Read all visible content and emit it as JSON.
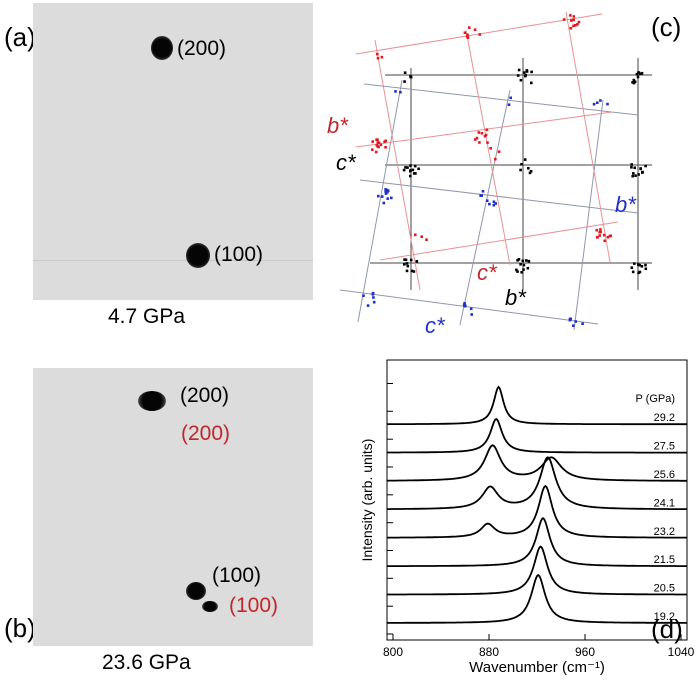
{
  "panel_a": {
    "label": "(a)",
    "caption": "4.7 GPa",
    "spots": [
      {
        "label": "(200)",
        "color": "#000000"
      },
      {
        "label": "(100)",
        "color": "#000000"
      }
    ]
  },
  "panel_b": {
    "label": "(b)",
    "caption": "23.6 GPa",
    "spots": [
      {
        "label": "(200)",
        "color": "#000000"
      },
      {
        "label": "(200)",
        "color": "#c0262a"
      },
      {
        "label": "(100)",
        "color": "#000000"
      },
      {
        "label": "(100)",
        "color": "#c0262a"
      }
    ]
  },
  "panel_c": {
    "label": "(c)",
    "axis_labels": [
      {
        "text": "b*",
        "color": "#c0262a"
      },
      {
        "text": "c*",
        "color": "#000000"
      },
      {
        "text": "b*",
        "color": "#1f2fcf"
      },
      {
        "text": "c*",
        "color": "#c0262a"
      },
      {
        "text": "b*",
        "color": "#000000"
      },
      {
        "text": "c*",
        "color": "#1f2fcf"
      }
    ]
  },
  "panel_d": {
    "label": "(d)",
    "chart_data": {
      "type": "line",
      "xlabel": "Wavenumber (cm⁻¹)",
      "ylabel": "Intensity (arb. units)",
      "xlim": [
        795,
        1045
      ],
      "xticks": [
        800,
        880,
        960,
        1040
      ],
      "legend_title": "P (GPa)",
      "series": [
        {
          "name": "19.2",
          "peaks": [
            {
              "x": 921,
              "h": 4.0,
              "w": 7
            }
          ]
        },
        {
          "name": "20.5",
          "peaks": [
            {
              "x": 923,
              "h": 4.0,
              "w": 7
            }
          ]
        },
        {
          "name": "21.5",
          "peaks": [
            {
              "x": 925,
              "h": 4.0,
              "w": 7
            }
          ]
        },
        {
          "name": "23.2",
          "peaks": [
            {
              "x": 927,
              "h": 4.3,
              "w": 7
            },
            {
              "x": 879,
              "h": 1.1,
              "w": 7
            }
          ]
        },
        {
          "name": "24.1",
          "peaks": [
            {
              "x": 929,
              "h": 4.3,
              "w": 8
            },
            {
              "x": 881,
              "h": 1.8,
              "w": 8
            }
          ]
        },
        {
          "name": "25.6",
          "peaks": [
            {
              "x": 932,
              "h": 1.9,
              "w": 10
            },
            {
              "x": 883,
              "h": 2.9,
              "w": 8
            }
          ]
        },
        {
          "name": "27.5",
          "peaks": [
            {
              "x": 886,
              "h": 2.8,
              "w": 6
            }
          ]
        },
        {
          "name": "29.2",
          "peaks": [
            {
              "x": 888,
              "h": 3.1,
              "w": 5
            }
          ]
        }
      ]
    }
  }
}
